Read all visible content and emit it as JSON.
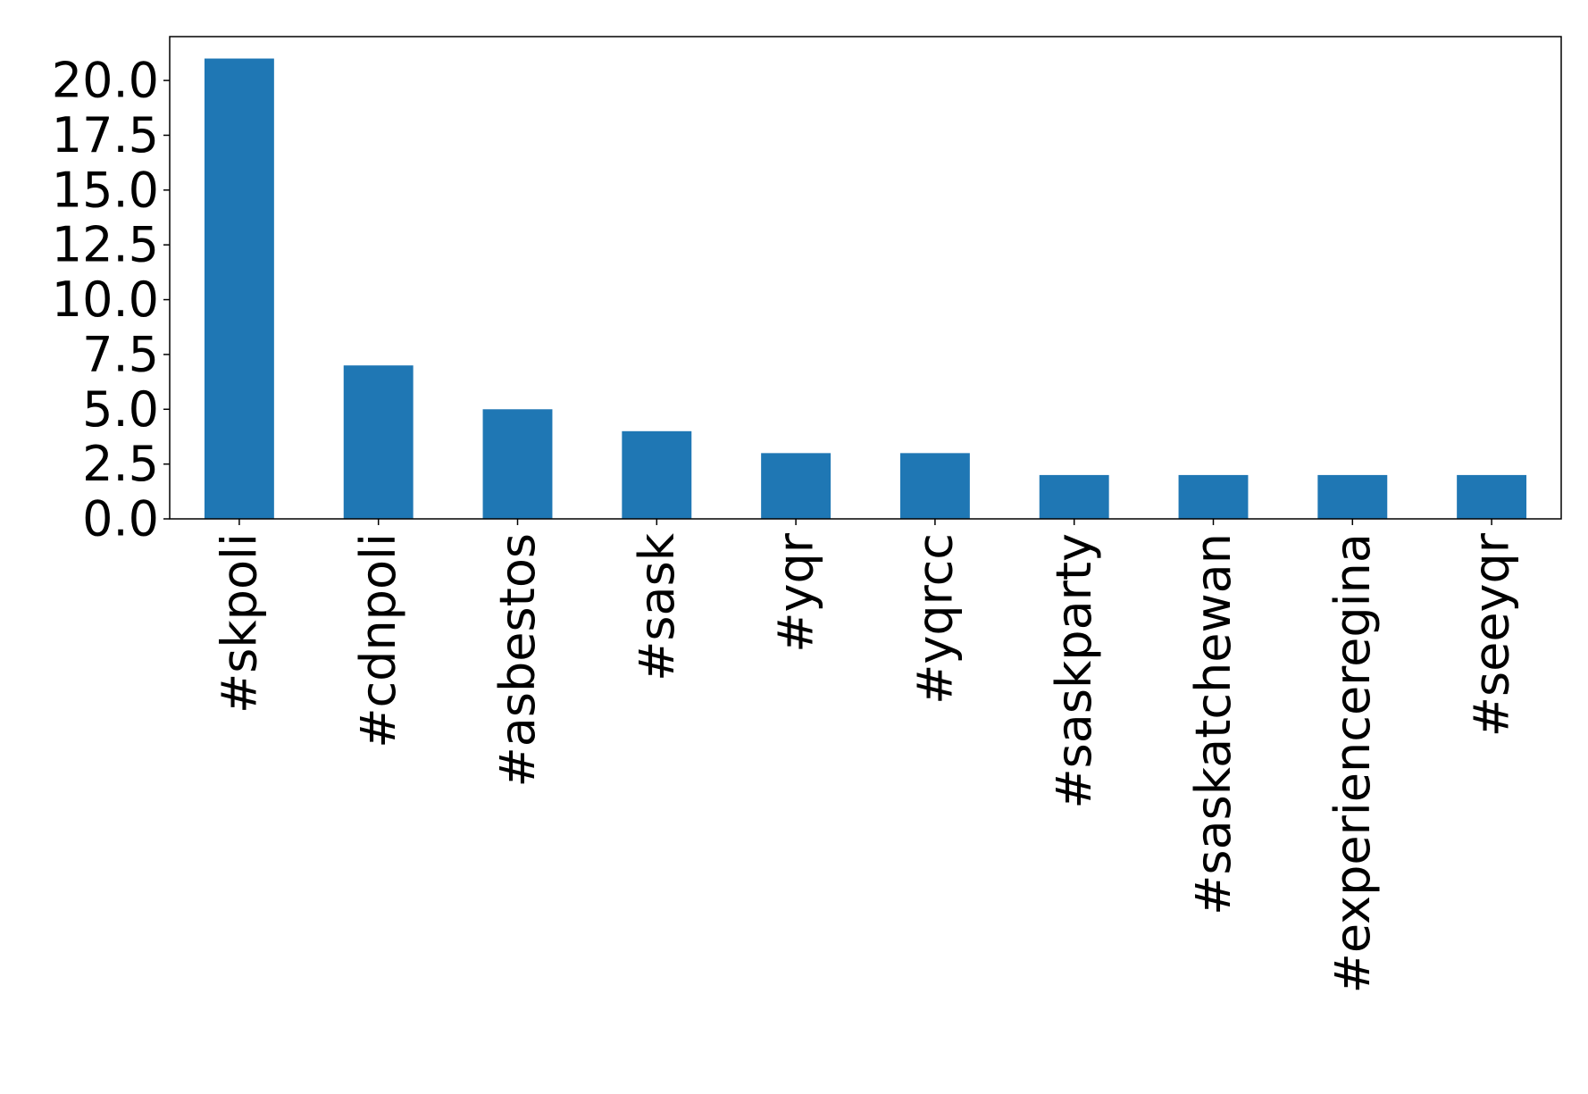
{
  "chart_data": {
    "type": "bar",
    "title": "",
    "xlabel": "",
    "ylabel": "",
    "categories": [
      "#skpoli",
      "#cdnpoli",
      "#asbestos",
      "#sask",
      "#yqr",
      "#yqrcc",
      "#saskparty",
      "#saskatchewan",
      "#experienceregina",
      "#seeyqr"
    ],
    "values": [
      21,
      7,
      5,
      4,
      3,
      3,
      2,
      2,
      2,
      2
    ],
    "ylim": [
      0,
      22
    ],
    "yticks": [
      "0.0",
      "2.5",
      "5.0",
      "7.5",
      "10.0",
      "12.5",
      "15.0",
      "17.5",
      "20.0"
    ],
    "bar_color": "#1f77b4",
    "grid": false,
    "legend": "none"
  }
}
